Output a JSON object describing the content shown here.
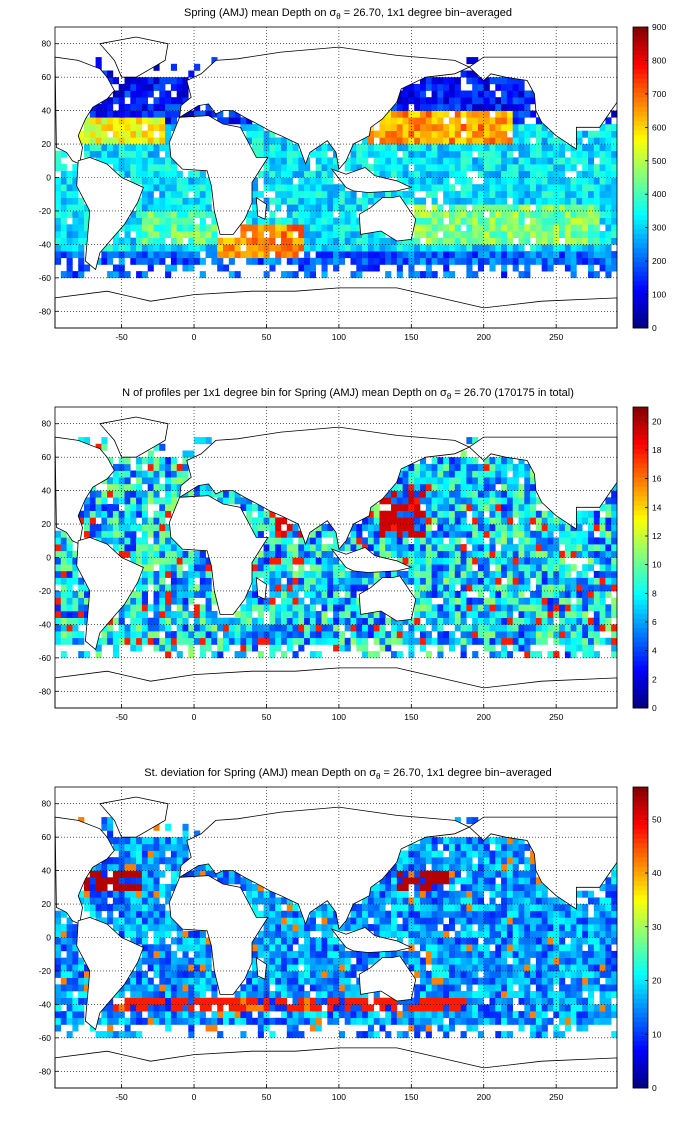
{
  "chart_data": [
    {
      "type": "heatmap",
      "title_parts": {
        "pre": "Spring (AMJ) mean Depth on ",
        "sym": "σ",
        "sub": "θ",
        "post": " = 26.70, 1x1 degree bin−averaged"
      },
      "xticks": [
        -50,
        0,
        50,
        100,
        150,
        200,
        250
      ],
      "yticks": [
        -80,
        -60,
        -40,
        -20,
        0,
        20,
        40,
        60,
        80
      ],
      "xlim": [
        -96,
        292
      ],
      "ylim": [
        -90,
        90
      ],
      "colorbar": {
        "min": 0,
        "max": 900,
        "ticks": [
          0,
          100,
          200,
          300,
          400,
          500,
          600,
          700,
          800,
          900
        ]
      },
      "colormap": "jet",
      "grid": true
    },
    {
      "type": "heatmap",
      "title_parts": {
        "pre": "N of profiles per 1x1 degree bin for Spring (AMJ) mean Depth on ",
        "sym": "σ",
        "sub": "θ",
        "post": " = 26.70 (170175 in total)"
      },
      "xticks": [
        -50,
        0,
        50,
        100,
        150,
        200,
        250
      ],
      "yticks": [
        -80,
        -60,
        -40,
        -20,
        0,
        20,
        40,
        60,
        80
      ],
      "xlim": [
        -96,
        292
      ],
      "ylim": [
        -90,
        90
      ],
      "colorbar": {
        "min": 0,
        "max": 21,
        "ticks": [
          0,
          2,
          4,
          6,
          8,
          10,
          12,
          14,
          16,
          18,
          20
        ]
      },
      "colormap": "jet",
      "grid": true
    },
    {
      "type": "heatmap",
      "title_parts": {
        "pre": "St. deviation for Spring (AMJ) mean Depth on ",
        "sym": "σ",
        "sub": "θ",
        "post": " = 26.70, 1x1 degree bin−averaged"
      },
      "xticks": [
        -50,
        0,
        50,
        100,
        150,
        200,
        250
      ],
      "yticks": [
        -80,
        -60,
        -40,
        -20,
        0,
        20,
        40,
        60,
        80
      ],
      "xlim": [
        -96,
        292
      ],
      "ylim": [
        -90,
        90
      ],
      "colorbar": {
        "min": 0,
        "max": 56,
        "ticks": [
          0,
          10,
          20,
          30,
          40,
          50
        ]
      },
      "colormap": "jet",
      "grid": true
    }
  ]
}
